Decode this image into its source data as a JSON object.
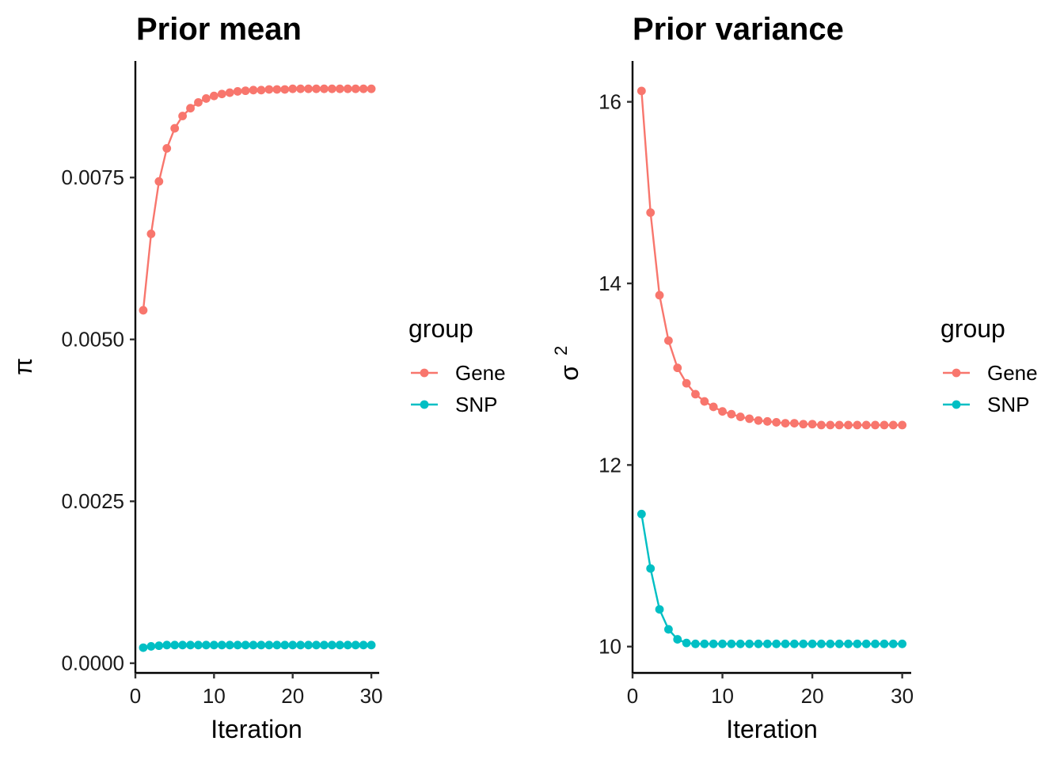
{
  "colors": {
    "Gene": "#F8766D",
    "SNP": "#00BFC4"
  },
  "chart_data": [
    {
      "type": "line",
      "title": "Prior mean",
      "xlabel": "Iteration",
      "ylabel": "π",
      "xlim": [
        0,
        31
      ],
      "ylim": [
        -0.00015,
        0.0093
      ],
      "x_ticks": [
        0,
        10,
        20,
        30
      ],
      "x_tick_labels": [
        "0",
        "10",
        "20",
        "30"
      ],
      "y_ticks": [
        0,
        0.0025,
        0.005,
        0.0075
      ],
      "y_tick_labels": [
        "0.0000",
        "0.0025",
        "0.0050",
        "0.0075"
      ],
      "x": [
        1,
        2,
        3,
        4,
        5,
        6,
        7,
        8,
        9,
        10,
        11,
        12,
        13,
        14,
        15,
        16,
        17,
        18,
        19,
        20,
        21,
        22,
        23,
        24,
        25,
        26,
        27,
        28,
        29,
        30
      ],
      "legend": {
        "title": "group",
        "entries": [
          "Gene",
          "SNP"
        ]
      },
      "series": [
        {
          "name": "Gene",
          "values": [
            0.00545,
            0.00663,
            0.00744,
            0.00795,
            0.00826,
            0.00845,
            0.00857,
            0.00866,
            0.00872,
            0.00876,
            0.00879,
            0.00881,
            0.00883,
            0.00884,
            0.00885,
            0.00885,
            0.00886,
            0.00886,
            0.00886,
            0.00887,
            0.00887,
            0.00887,
            0.00887,
            0.00887,
            0.00887,
            0.00887,
            0.00887,
            0.00887,
            0.00887,
            0.00887
          ]
        },
        {
          "name": "SNP",
          "values": [
            0.00024,
            0.00026,
            0.00027,
            0.00028,
            0.00028,
            0.00028,
            0.00028,
            0.00028,
            0.00028,
            0.00028,
            0.00028,
            0.00028,
            0.00028,
            0.00028,
            0.00028,
            0.00028,
            0.00028,
            0.00028,
            0.00028,
            0.00028,
            0.00028,
            0.00028,
            0.00028,
            0.00028,
            0.00028,
            0.00028,
            0.00028,
            0.00028,
            0.00028,
            0.00028
          ]
        }
      ]
    },
    {
      "type": "line",
      "title": "Prior variance",
      "xlabel": "Iteration",
      "ylabel": "σ",
      "ylabel_superscript": "2",
      "xlim": [
        0,
        31
      ],
      "ylim": [
        9.71,
        16.45
      ],
      "x_ticks": [
        0,
        10,
        20,
        30
      ],
      "x_tick_labels": [
        "0",
        "10",
        "20",
        "30"
      ],
      "y_ticks": [
        10,
        12,
        14,
        16
      ],
      "y_tick_labels": [
        "10",
        "12",
        "14",
        "16"
      ],
      "x": [
        1,
        2,
        3,
        4,
        5,
        6,
        7,
        8,
        9,
        10,
        11,
        12,
        13,
        14,
        15,
        16,
        17,
        18,
        19,
        20,
        21,
        22,
        23,
        24,
        25,
        26,
        27,
        28,
        29,
        30
      ],
      "legend": {
        "title": "group",
        "entries": [
          "Gene",
          "SNP"
        ]
      },
      "series": [
        {
          "name": "Gene",
          "values": [
            16.12,
            14.78,
            13.87,
            13.37,
            13.07,
            12.9,
            12.78,
            12.7,
            12.64,
            12.59,
            12.56,
            12.53,
            12.51,
            12.49,
            12.48,
            12.47,
            12.46,
            12.46,
            12.45,
            12.45,
            12.44,
            12.44,
            12.44,
            12.44,
            12.44,
            12.44,
            12.44,
            12.44,
            12.44,
            12.44
          ]
        },
        {
          "name": "SNP",
          "values": [
            11.46,
            10.86,
            10.41,
            10.19,
            10.08,
            10.04,
            10.03,
            10.03,
            10.03,
            10.03,
            10.03,
            10.03,
            10.03,
            10.03,
            10.03,
            10.03,
            10.03,
            10.03,
            10.03,
            10.03,
            10.03,
            10.03,
            10.03,
            10.03,
            10.03,
            10.03,
            10.03,
            10.03,
            10.03,
            10.03
          ]
        }
      ]
    }
  ]
}
